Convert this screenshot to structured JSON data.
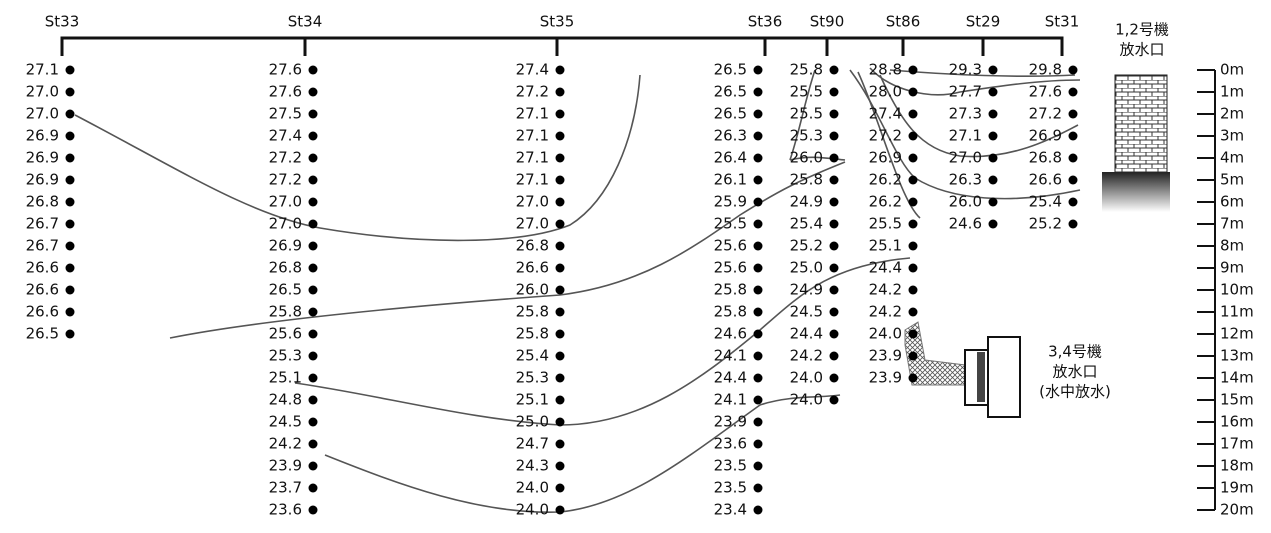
{
  "stations": [
    {
      "name": "St33",
      "values": [
        "27.1",
        "27.0",
        "27.0",
        "26.9",
        "26.9",
        "26.9",
        "26.8",
        "26.7",
        "26.7",
        "26.6",
        "26.6",
        "26.6",
        "26.5"
      ]
    },
    {
      "name": "St34",
      "values": [
        "27.6",
        "27.6",
        "27.5",
        "27.4",
        "27.2",
        "27.2",
        "27.0",
        "27.0",
        "26.9",
        "26.8",
        "26.5",
        "25.8",
        "25.6",
        "25.3",
        "25.1",
        "24.8",
        "24.5",
        "24.2",
        "23.9",
        "23.7",
        "23.6"
      ]
    },
    {
      "name": "St35",
      "values": [
        "27.4",
        "27.2",
        "27.1",
        "27.1",
        "27.1",
        "27.1",
        "27.0",
        "27.0",
        "26.8",
        "26.6",
        "26.0",
        "25.8",
        "25.8",
        "25.4",
        "25.3",
        "25.1",
        "25.0",
        "24.7",
        "24.3",
        "24.0",
        "24.0"
      ]
    },
    {
      "name": "St36",
      "values": [
        "26.5",
        "26.5",
        "26.5",
        "26.3",
        "26.4",
        "26.1",
        "25.9",
        "25.5",
        "25.6",
        "25.6",
        "25.8",
        "25.8",
        "24.6",
        "24.1",
        "24.4",
        "24.1",
        "23.9",
        "23.6",
        "23.5",
        "23.5",
        "23.4"
      ]
    },
    {
      "name": "St90",
      "values": [
        "25.8",
        "25.5",
        "25.5",
        "25.3",
        "26.0",
        "25.8",
        "24.9",
        "25.4",
        "25.2",
        "25.0",
        "24.9",
        "24.5",
        "24.4",
        "24.2",
        "24.0",
        "24.0"
      ]
    },
    {
      "name": "St86",
      "values": [
        "28.8",
        "28.0",
        "27.4",
        "27.2",
        "26.9",
        "26.2",
        "26.2",
        "25.5",
        "25.1",
        "24.4",
        "24.2",
        "24.2",
        "24.0",
        "23.9",
        "23.9"
      ]
    },
    {
      "name": "St29",
      "values": [
        "29.3",
        "27.7",
        "27.3",
        "27.1",
        "27.0",
        "26.3",
        "26.0",
        "24.6"
      ]
    },
    {
      "name": "St31",
      "values": [
        "29.8",
        "27.6",
        "27.2",
        "26.9",
        "26.8",
        "26.6",
        "25.4",
        "25.2"
      ]
    }
  ],
  "depth_labels": [
    "0m",
    "1m",
    "2m",
    "3m",
    "4m",
    "5m",
    "6m",
    "7m",
    "8m",
    "9m",
    "10m",
    "11m",
    "12m",
    "13m",
    "14m",
    "15m",
    "16m",
    "17m",
    "18m",
    "19m",
    "20m"
  ],
  "outlets": [
    {
      "lines": [
        "1,2号機",
        "放水口"
      ]
    },
    {
      "lines": [
        "3,4号機",
        "放水口",
        "(水中放水)"
      ]
    }
  ]
}
